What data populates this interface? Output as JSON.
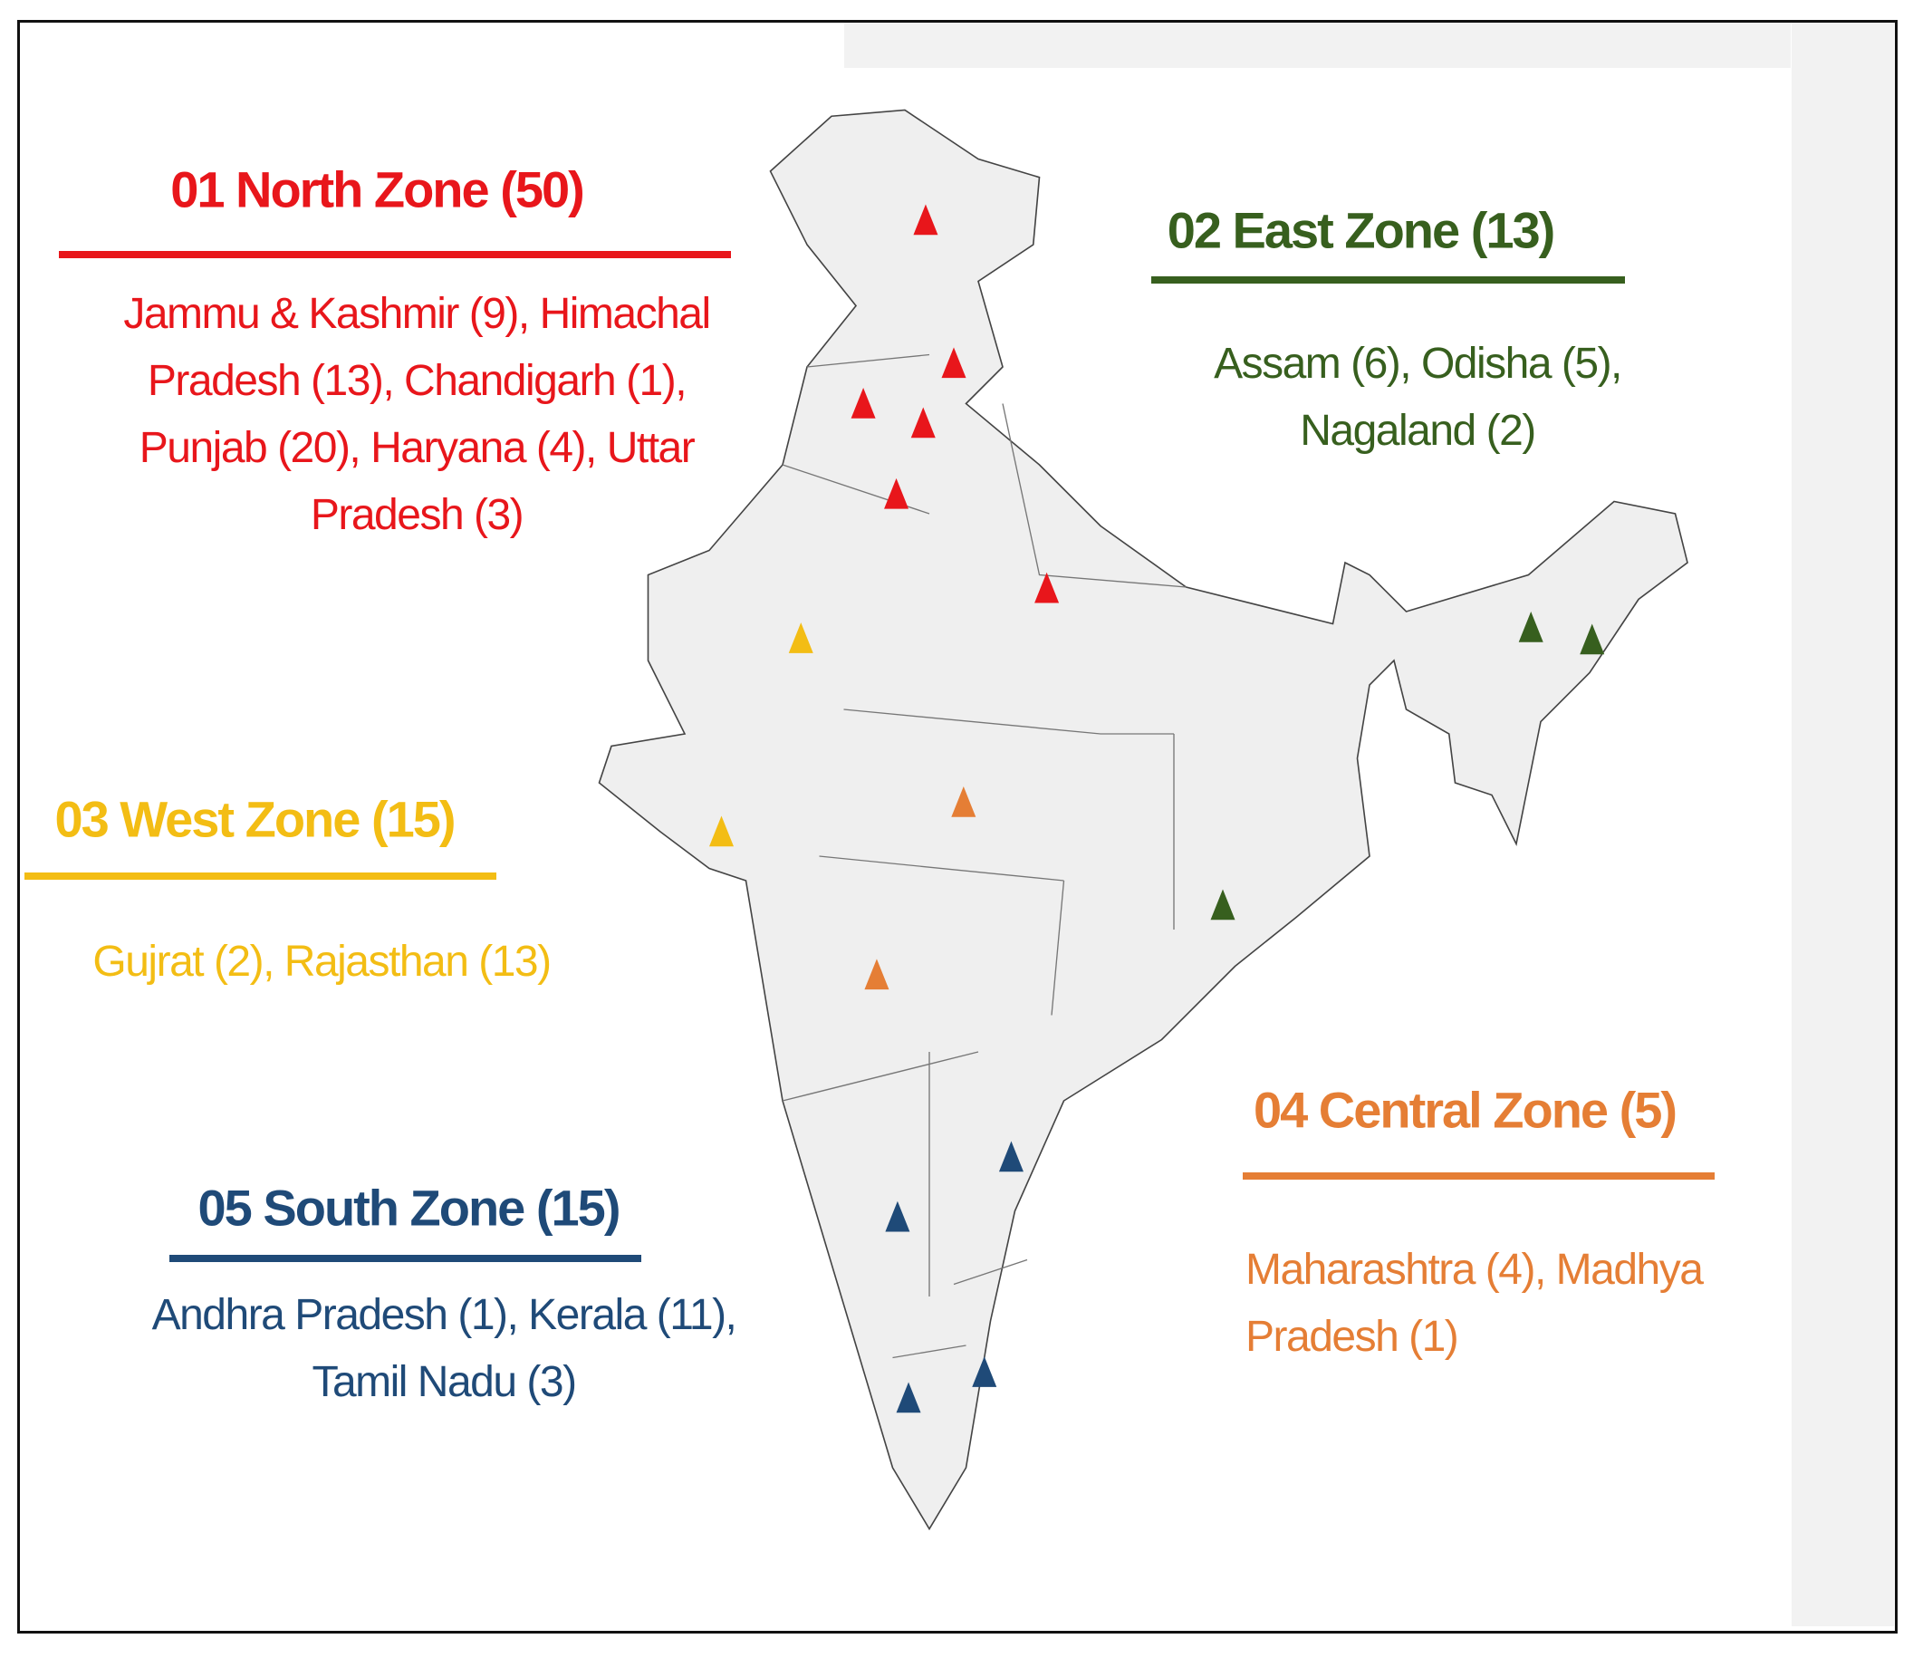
{
  "zones": [
    {
      "title": "01 North Zone (50)",
      "states": "Jammu & Kashmir (9), Himachal Pradesh (13), Chandigarh (1), Punjab (20), Haryana (4), Uttar Pradesh (3)",
      "color": "#e8161b"
    },
    {
      "title": "02 East Zone (13)",
      "states": "Assam (6), Odisha (5), Nagaland (2)",
      "color": "#375f1e"
    },
    {
      "title": "03 West Zone (15)",
      "states": "Gujrat (2), Rajasthan (13)",
      "color": "#f3bd14"
    },
    {
      "title": "04 Central Zone (5)",
      "states": "Maharashtra (4), Madhya Pradesh (1)",
      "color": "#e57e35"
    },
    {
      "title": "05 South Zone (15)",
      "states": "Andhra Pradesh (1), Kerala (11), Tamil Nadu (3)",
      "color": "#1f4a78"
    }
  ]
}
